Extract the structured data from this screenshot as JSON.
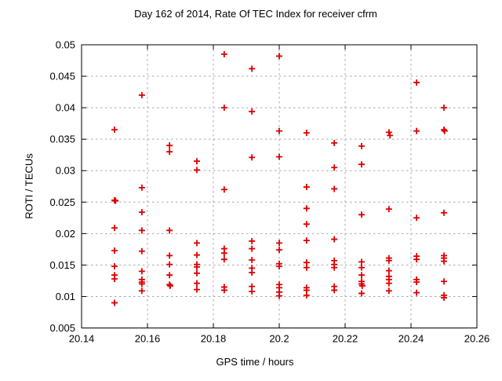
{
  "chart_data": {
    "type": "scatter",
    "title": "Day 162 of 2014, Rate Of TEC Index for receiver cfrm",
    "xlabel": "GPS time / hours",
    "ylabel": "ROTI / TECUs",
    "xlim": [
      20.14,
      20.26
    ],
    "ylim": [
      0.005,
      0.05
    ],
    "x_ticks": [
      {
        "value": 20.14,
        "label": "20.14"
      },
      {
        "value": 20.16,
        "label": "20.16"
      },
      {
        "value": 20.18,
        "label": "20.18"
      },
      {
        "value": 20.2,
        "label": "20.2"
      },
      {
        "value": 20.22,
        "label": "20.22"
      },
      {
        "value": 20.24,
        "label": "20.24"
      },
      {
        "value": 20.26,
        "label": "20.26"
      }
    ],
    "y_ticks": [
      {
        "value": 0.005,
        "label": "0.005"
      },
      {
        "value": 0.01,
        "label": "0.01"
      },
      {
        "value": 0.015,
        "label": "0.015"
      },
      {
        "value": 0.02,
        "label": "0.02"
      },
      {
        "value": 0.025,
        "label": "0.025"
      },
      {
        "value": 0.03,
        "label": "0.03"
      },
      {
        "value": 0.035,
        "label": "0.035"
      },
      {
        "value": 0.04,
        "label": "0.04"
      },
      {
        "value": 0.045,
        "label": "0.045"
      },
      {
        "value": 0.05,
        "label": "0.05"
      }
    ],
    "grid": true,
    "legend": "none",
    "colors": {
      "marker": "#e00000",
      "grid": "#a8a8a8",
      "axis": "#000000",
      "background": "#ffffff"
    },
    "marker": {
      "shape": "plus",
      "size": 9
    },
    "series": [
      {
        "name": "ROTI",
        "points": [
          [
            20.15,
            0.0365
          ],
          [
            20.15,
            0.0253
          ],
          [
            20.1503,
            0.0252
          ],
          [
            20.15,
            0.0209
          ],
          [
            20.15,
            0.0173
          ],
          [
            20.15,
            0.0148
          ],
          [
            20.15,
            0.0134
          ],
          [
            20.15,
            0.0128
          ],
          [
            20.15,
            0.009
          ],
          [
            20.1583,
            0.042
          ],
          [
            20.1583,
            0.0273
          ],
          [
            20.1583,
            0.0234
          ],
          [
            20.1583,
            0.0205
          ],
          [
            20.1583,
            0.0172
          ],
          [
            20.1583,
            0.014
          ],
          [
            20.1583,
            0.0127
          ],
          [
            20.1583,
            0.0123
          ],
          [
            20.1583,
            0.012
          ],
          [
            20.1583,
            0.0109
          ],
          [
            20.1667,
            0.034
          ],
          [
            20.1667,
            0.033
          ],
          [
            20.1667,
            0.0205
          ],
          [
            20.1667,
            0.0165
          ],
          [
            20.1667,
            0.0151
          ],
          [
            20.1667,
            0.0134
          ],
          [
            20.1667,
            0.0119
          ],
          [
            20.1669,
            0.0117
          ],
          [
            20.175,
            0.0315
          ],
          [
            20.175,
            0.0301
          ],
          [
            20.175,
            0.0185
          ],
          [
            20.175,
            0.0166
          ],
          [
            20.175,
            0.0151
          ],
          [
            20.175,
            0.0147
          ],
          [
            20.175,
            0.0137
          ],
          [
            20.175,
            0.0121
          ],
          [
            20.175,
            0.0111
          ],
          [
            20.1833,
            0.0485
          ],
          [
            20.1833,
            0.04
          ],
          [
            20.1833,
            0.027
          ],
          [
            20.1833,
            0.0176
          ],
          [
            20.1833,
            0.0169
          ],
          [
            20.1833,
            0.0159
          ],
          [
            20.1833,
            0.0115
          ],
          [
            20.1833,
            0.011
          ],
          [
            20.1917,
            0.0462
          ],
          [
            20.1917,
            0.0394
          ],
          [
            20.1917,
            0.0321
          ],
          [
            20.1917,
            0.0188
          ],
          [
            20.1917,
            0.0176
          ],
          [
            20.1917,
            0.0158
          ],
          [
            20.1917,
            0.0145
          ],
          [
            20.1917,
            0.0138
          ],
          [
            20.1917,
            0.0116
          ],
          [
            20.1917,
            0.0108
          ],
          [
            20.2,
            0.0482
          ],
          [
            20.2,
            0.0363
          ],
          [
            20.2,
            0.0322
          ],
          [
            20.2,
            0.0185
          ],
          [
            20.2,
            0.0174
          ],
          [
            20.2,
            0.0152
          ],
          [
            20.2,
            0.0148
          ],
          [
            20.2,
            0.0119
          ],
          [
            20.2,
            0.0114
          ],
          [
            20.2,
            0.0107
          ],
          [
            20.2,
            0.0101
          ],
          [
            20.2083,
            0.036
          ],
          [
            20.2083,
            0.0274
          ],
          [
            20.2083,
            0.024
          ],
          [
            20.2083,
            0.0215
          ],
          [
            20.2083,
            0.0189
          ],
          [
            20.2083,
            0.0154
          ],
          [
            20.2083,
            0.0146
          ],
          [
            20.2083,
            0.0114
          ],
          [
            20.2083,
            0.011
          ],
          [
            20.2083,
            0.0102
          ],
          [
            20.2167,
            0.0344
          ],
          [
            20.2167,
            0.0305
          ],
          [
            20.2167,
            0.0271
          ],
          [
            20.2167,
            0.0191
          ],
          [
            20.2167,
            0.0157
          ],
          [
            20.2167,
            0.0151
          ],
          [
            20.2167,
            0.0146
          ],
          [
            20.2167,
            0.0116
          ],
          [
            20.2167,
            0.011
          ],
          [
            20.225,
            0.0339
          ],
          [
            20.225,
            0.031
          ],
          [
            20.225,
            0.023
          ],
          [
            20.225,
            0.0155
          ],
          [
            20.225,
            0.0146
          ],
          [
            20.225,
            0.0134
          ],
          [
            20.225,
            0.0124
          ],
          [
            20.225,
            0.012
          ],
          [
            20.2252,
            0.0117
          ],
          [
            20.225,
            0.0105
          ],
          [
            20.2333,
            0.0361
          ],
          [
            20.2336,
            0.0356
          ],
          [
            20.2333,
            0.0239
          ],
          [
            20.2333,
            0.0161
          ],
          [
            20.2333,
            0.0157
          ],
          [
            20.2333,
            0.0141
          ],
          [
            20.2333,
            0.0132
          ],
          [
            20.2333,
            0.0127
          ],
          [
            20.2333,
            0.0121
          ],
          [
            20.2333,
            0.0109
          ],
          [
            20.2417,
            0.044
          ],
          [
            20.2417,
            0.0363
          ],
          [
            20.2417,
            0.0225
          ],
          [
            20.2417,
            0.0164
          ],
          [
            20.2417,
            0.0159
          ],
          [
            20.2417,
            0.0127
          ],
          [
            20.2417,
            0.0123
          ],
          [
            20.2417,
            0.0106
          ],
          [
            20.25,
            0.04
          ],
          [
            20.25,
            0.0365
          ],
          [
            20.2502,
            0.0363
          ],
          [
            20.25,
            0.0233
          ],
          [
            20.25,
            0.0165
          ],
          [
            20.25,
            0.0161
          ],
          [
            20.25,
            0.0156
          ],
          [
            20.25,
            0.0124
          ],
          [
            20.25,
            0.0102
          ],
          [
            20.25,
            0.0098
          ]
        ]
      }
    ]
  }
}
